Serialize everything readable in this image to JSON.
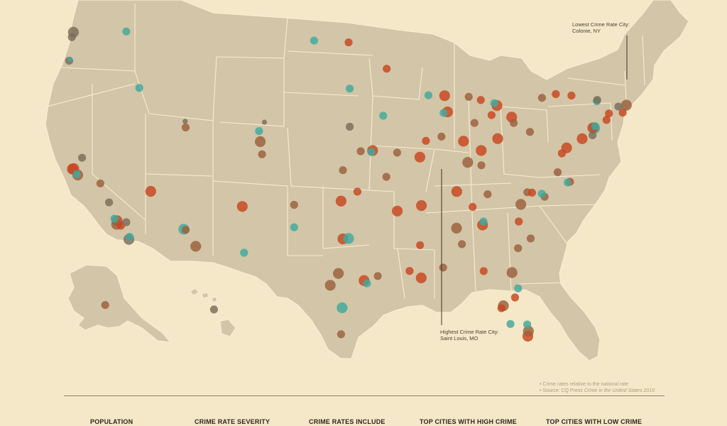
{
  "map": {
    "colors": {
      "land": "#d3c5a8",
      "borders": "#f7ecd4",
      "background": "#f5e8c8",
      "high_crime": "#c8451f",
      "elevated_crime": "#9b5f3c",
      "average_crime": "#7a6d5a",
      "low_crime": "#3eaa9d"
    },
    "cities": [
      {
        "lon": -122.3,
        "lat": 47.6,
        "level": "average",
        "size": "l"
      },
      {
        "lon": -122.45,
        "lat": 47.25,
        "level": "average",
        "size": "m"
      },
      {
        "lon": -122.7,
        "lat": 45.55,
        "level": "average",
        "size": "m"
      },
      {
        "lon": -122.6,
        "lat": 45.65,
        "level": "low",
        "size": "s"
      },
      {
        "lon": -117.4,
        "lat": 47.66,
        "level": "low",
        "size": "m"
      },
      {
        "lon": -116.2,
        "lat": 43.6,
        "level": "low",
        "size": "m"
      },
      {
        "lon": -111.9,
        "lat": 40.76,
        "level": "elevated",
        "size": "m"
      },
      {
        "lon": -111.95,
        "lat": 41.2,
        "level": "average",
        "size": "s"
      },
      {
        "lon": -121.5,
        "lat": 38.58,
        "level": "average",
        "size": "m"
      },
      {
        "lon": -122.4,
        "lat": 37.77,
        "level": "high",
        "size": "l"
      },
      {
        "lon": -122.27,
        "lat": 37.8,
        "level": "high",
        "size": "l"
      },
      {
        "lon": -121.9,
        "lat": 37.34,
        "level": "elevated",
        "size": "l"
      },
      {
        "lon": -122.0,
        "lat": 37.4,
        "level": "low",
        "size": "m"
      },
      {
        "lon": -119.8,
        "lat": 36.74,
        "level": "elevated",
        "size": "m"
      },
      {
        "lon": -119.0,
        "lat": 35.37,
        "level": "average",
        "size": "m"
      },
      {
        "lon": -118.25,
        "lat": 34.05,
        "level": "high",
        "size": "l"
      },
      {
        "lon": -118.3,
        "lat": 33.8,
        "level": "elevated",
        "size": "l"
      },
      {
        "lon": -118.5,
        "lat": 34.2,
        "level": "low",
        "size": "m"
      },
      {
        "lon": -117.9,
        "lat": 33.7,
        "level": "high",
        "size": "m"
      },
      {
        "lon": -117.4,
        "lat": 33.95,
        "level": "average",
        "size": "m"
      },
      {
        "lon": -117.16,
        "lat": 32.72,
        "level": "average",
        "size": "l"
      },
      {
        "lon": -117.1,
        "lat": 32.9,
        "level": "low",
        "size": "m"
      },
      {
        "lon": -115.14,
        "lat": 36.17,
        "level": "high",
        "size": "l"
      },
      {
        "lon": -112.07,
        "lat": 33.45,
        "level": "low",
        "size": "l"
      },
      {
        "lon": -111.9,
        "lat": 33.4,
        "level": "elevated",
        "size": "m"
      },
      {
        "lon": -110.97,
        "lat": 32.22,
        "level": "elevated",
        "size": "l"
      },
      {
        "lon": -106.65,
        "lat": 35.08,
        "level": "high",
        "size": "l"
      },
      {
        "lon": -106.49,
        "lat": 31.76,
        "level": "low",
        "size": "m"
      },
      {
        "lon": -104.99,
        "lat": 39.74,
        "level": "elevated",
        "size": "l"
      },
      {
        "lon": -104.82,
        "lat": 38.83,
        "level": "elevated",
        "size": "m"
      },
      {
        "lon": -105.1,
        "lat": 40.5,
        "level": "low",
        "size": "m"
      },
      {
        "lon": -101.85,
        "lat": 35.2,
        "level": "elevated",
        "size": "m"
      },
      {
        "lon": -101.85,
        "lat": 33.58,
        "level": "low",
        "size": "m"
      },
      {
        "lon": -97.5,
        "lat": 35.47,
        "level": "high",
        "size": "l"
      },
      {
        "lon": -95.99,
        "lat": 36.15,
        "level": "high",
        "size": "m"
      },
      {
        "lon": -97.33,
        "lat": 37.69,
        "level": "elevated",
        "size": "m"
      },
      {
        "lon": -94.58,
        "lat": 39.1,
        "level": "high",
        "size": "l"
      },
      {
        "lon": -94.7,
        "lat": 39.0,
        "level": "low",
        "size": "m"
      },
      {
        "lon": -95.68,
        "lat": 39.05,
        "level": "elevated",
        "size": "m"
      },
      {
        "lon": -96.7,
        "lat": 40.81,
        "level": "average",
        "size": "m"
      },
      {
        "lon": -96.7,
        "lat": 43.55,
        "level": "low",
        "size": "m"
      },
      {
        "lon": -93.27,
        "lat": 44.98,
        "level": "high",
        "size": "m"
      },
      {
        "lon": -93.6,
        "lat": 41.6,
        "level": "low",
        "size": "m"
      },
      {
        "lon": -90.2,
        "lat": 38.63,
        "level": "high",
        "size": "l"
      },
      {
        "lon": -92.3,
        "lat": 38.95,
        "level": "elevated",
        "size": "m"
      },
      {
        "lon": -93.3,
        "lat": 37.21,
        "level": "elevated",
        "size": "m"
      },
      {
        "lon": -97.33,
        "lat": 32.75,
        "level": "high",
        "size": "l"
      },
      {
        "lon": -96.8,
        "lat": 32.78,
        "level": "low",
        "size": "l"
      },
      {
        "lon": -97.75,
        "lat": 30.27,
        "level": "elevated",
        "size": "l"
      },
      {
        "lon": -98.5,
        "lat": 29.42,
        "level": "elevated",
        "size": "l"
      },
      {
        "lon": -95.37,
        "lat": 29.76,
        "level": "high",
        "size": "l"
      },
      {
        "lon": -95.1,
        "lat": 29.55,
        "level": "low",
        "size": "m"
      },
      {
        "lon": -94.1,
        "lat": 30.08,
        "level": "elevated",
        "size": "m"
      },
      {
        "lon": -97.4,
        "lat": 27.8,
        "level": "low",
        "size": "l"
      },
      {
        "lon": -97.5,
        "lat": 25.9,
        "level": "elevated",
        "size": "m"
      },
      {
        "lon": -92.29,
        "lat": 34.75,
        "level": "high",
        "size": "l"
      },
      {
        "lon": -90.05,
        "lat": 35.15,
        "level": "high",
        "size": "l"
      },
      {
        "lon": -90.18,
        "lat": 32.3,
        "level": "high",
        "size": "m"
      },
      {
        "lon": -91.15,
        "lat": 30.45,
        "level": "high",
        "size": "m"
      },
      {
        "lon": -90.07,
        "lat": 29.95,
        "level": "high",
        "size": "l"
      },
      {
        "lon": -88.04,
        "lat": 30.69,
        "level": "elevated",
        "size": "m"
      },
      {
        "lon": -86.8,
        "lat": 33.52,
        "level": "elevated",
        "size": "l"
      },
      {
        "lon": -86.3,
        "lat": 32.37,
        "level": "elevated",
        "size": "m"
      },
      {
        "lon": -84.39,
        "lat": 33.75,
        "level": "high",
        "size": "l"
      },
      {
        "lon": -84.3,
        "lat": 34.0,
        "level": "low",
        "size": "m"
      },
      {
        "lon": -86.78,
        "lat": 36.16,
        "level": "high",
        "size": "l"
      },
      {
        "lon": -85.31,
        "lat": 35.05,
        "level": "high",
        "size": "m"
      },
      {
        "lon": -83.92,
        "lat": 35.96,
        "level": "elevated",
        "size": "m"
      },
      {
        "lon": -85.76,
        "lat": 38.25,
        "level": "elevated",
        "size": "l"
      },
      {
        "lon": -84.5,
        "lat": 38.04,
        "level": "elevated",
        "size": "m"
      },
      {
        "lon": -87.63,
        "lat": 41.88,
        "level": "high",
        "size": "l"
      },
      {
        "lon": -88.0,
        "lat": 41.8,
        "level": "low",
        "size": "m"
      },
      {
        "lon": -89.64,
        "lat": 39.8,
        "level": "high",
        "size": "m"
      },
      {
        "lon": -88.2,
        "lat": 40.1,
        "level": "elevated",
        "size": "m"
      },
      {
        "lon": -87.9,
        "lat": 43.04,
        "level": "high",
        "size": "l"
      },
      {
        "lon": -89.4,
        "lat": 43.07,
        "level": "low",
        "size": "m"
      },
      {
        "lon": -86.16,
        "lat": 39.77,
        "level": "high",
        "size": "l"
      },
      {
        "lon": -85.14,
        "lat": 41.08,
        "level": "elevated",
        "size": "m"
      },
      {
        "lon": -83.05,
        "lat": 42.33,
        "level": "high",
        "size": "l"
      },
      {
        "lon": -83.3,
        "lat": 42.5,
        "level": "low",
        "size": "m"
      },
      {
        "lon": -84.55,
        "lat": 42.73,
        "level": "high",
        "size": "m"
      },
      {
        "lon": -85.67,
        "lat": 42.96,
        "level": "elevated",
        "size": "m"
      },
      {
        "lon": -82.99,
        "lat": 39.96,
        "level": "high",
        "size": "l"
      },
      {
        "lon": -84.51,
        "lat": 39.1,
        "level": "high",
        "size": "l"
      },
      {
        "lon": -81.69,
        "lat": 41.5,
        "level": "high",
        "size": "l"
      },
      {
        "lon": -81.5,
        "lat": 41.08,
        "level": "elevated",
        "size": "m"
      },
      {
        "lon": -83.55,
        "lat": 41.65,
        "level": "high",
        "size": "m"
      },
      {
        "lon": -80.0,
        "lat": 40.44,
        "level": "elevated",
        "size": "m"
      },
      {
        "lon": -75.16,
        "lat": 39.95,
        "level": "high",
        "size": "l"
      },
      {
        "lon": -74.0,
        "lat": 40.71,
        "level": "low",
        "size": "l"
      },
      {
        "lon": -74.17,
        "lat": 40.73,
        "level": "high",
        "size": "l"
      },
      {
        "lon": -73.95,
        "lat": 40.85,
        "level": "low",
        "size": "m"
      },
      {
        "lon": -74.2,
        "lat": 40.2,
        "level": "average",
        "size": "m"
      },
      {
        "lon": -72.9,
        "lat": 41.3,
        "level": "high",
        "size": "m"
      },
      {
        "lon": -72.68,
        "lat": 41.76,
        "level": "high",
        "size": "m"
      },
      {
        "lon": -71.06,
        "lat": 42.36,
        "level": "elevated",
        "size": "l"
      },
      {
        "lon": -71.4,
        "lat": 41.82,
        "level": "high",
        "size": "m"
      },
      {
        "lon": -71.8,
        "lat": 42.26,
        "level": "average",
        "size": "m"
      },
      {
        "lon": -73.8,
        "lat": 42.65,
        "level": "low",
        "size": "m"
      },
      {
        "lon": -73.76,
        "lat": 42.74,
        "level": "average",
        "size": "m"
      },
      {
        "lon": -76.15,
        "lat": 43.05,
        "level": "high",
        "size": "m"
      },
      {
        "lon": -77.6,
        "lat": 43.16,
        "level": "high",
        "size": "m"
      },
      {
        "lon": -78.88,
        "lat": 42.89,
        "level": "elevated",
        "size": "m"
      },
      {
        "lon": -76.6,
        "lat": 39.29,
        "level": "high",
        "size": "l"
      },
      {
        "lon": -77.04,
        "lat": 38.9,
        "level": "high",
        "size": "m"
      },
      {
        "lon": -77.43,
        "lat": 37.54,
        "level": "elevated",
        "size": "m"
      },
      {
        "lon": -76.29,
        "lat": 36.85,
        "level": "high",
        "size": "m"
      },
      {
        "lon": -76.5,
        "lat": 36.8,
        "level": "low",
        "size": "m"
      },
      {
        "lon": -80.84,
        "lat": 35.23,
        "level": "elevated",
        "size": "l"
      },
      {
        "lon": -80.24,
        "lat": 36.1,
        "level": "elevated",
        "size": "m"
      },
      {
        "lon": -79.8,
        "lat": 36.07,
        "level": "high",
        "size": "m"
      },
      {
        "lon": -78.64,
        "lat": 35.78,
        "level": "elevated",
        "size": "m"
      },
      {
        "lon": -78.9,
        "lat": 36.0,
        "level": "low",
        "size": "m"
      },
      {
        "lon": -81.03,
        "lat": 34.0,
        "level": "high",
        "size": "m"
      },
      {
        "lon": -79.93,
        "lat": 32.78,
        "level": "elevated",
        "size": "m"
      },
      {
        "lon": -81.1,
        "lat": 32.08,
        "level": "elevated",
        "size": "m"
      },
      {
        "lon": -81.66,
        "lat": 30.33,
        "level": "elevated",
        "size": "l"
      },
      {
        "lon": -84.28,
        "lat": 30.44,
        "level": "high",
        "size": "m"
      },
      {
        "lon": -81.38,
        "lat": 28.54,
        "level": "high",
        "size": "m"
      },
      {
        "lon": -82.46,
        "lat": 27.95,
        "level": "elevated",
        "size": "l"
      },
      {
        "lon": -82.64,
        "lat": 27.77,
        "level": "high",
        "size": "m"
      },
      {
        "lon": -81.8,
        "lat": 26.64,
        "level": "low",
        "size": "m"
      },
      {
        "lon": -80.19,
        "lat": 25.76,
        "level": "high",
        "size": "l"
      },
      {
        "lon": -80.14,
        "lat": 26.12,
        "level": "elevated",
        "size": "l"
      },
      {
        "lon": -80.25,
        "lat": 26.6,
        "level": "low",
        "size": "m"
      },
      {
        "lon": -81.1,
        "lat": 29.2,
        "level": "low",
        "size": "m"
      },
      {
        "lon": -100.0,
        "lat": 47.0,
        "level": "low",
        "size": "m"
      },
      {
        "lon": -96.8,
        "lat": 46.87,
        "level": "high",
        "size": "m"
      },
      {
        "lon": -104.6,
        "lat": 41.14,
        "level": "average",
        "size": "s"
      },
      {
        "lon": -149.9,
        "lat": 61.22,
        "level": "elevated",
        "size": "m"
      },
      {
        "lon": -157.86,
        "lat": 21.31,
        "level": "average",
        "size": "m"
      }
    ]
  },
  "callouts": {
    "lowest": {
      "title": "Lowest Crime Rate City:",
      "city": "Colonie, NY"
    },
    "highest": {
      "title": "Highest Crime Rate City:",
      "city": "Saint Louis, MO"
    }
  },
  "notes": {
    "note1": "• Crime rates relative to the national rate",
    "source_prefix": "• Source: CQ Press ",
    "source_title": "Crime in the United States 2010"
  },
  "legend": {
    "population": "POPULATION",
    "severity": "CRIME RATE SEVERITY",
    "include": "CRIME RATES INCLUDE",
    "top_high": "TOP CITIES WITH HIGH CRIME",
    "top_low": "TOP CITIES WITH LOW CRIME"
  }
}
